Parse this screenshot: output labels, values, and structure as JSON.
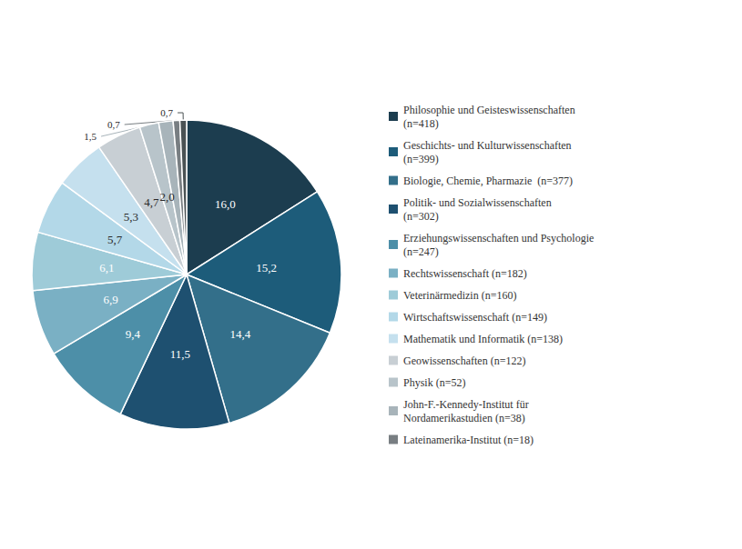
{
  "chart_data": {
    "type": "pie",
    "categories": [
      "Philosophie und Geisteswissenschaften\n(n=418)",
      "Geschichts- und Kulturwissenschaften\n(n=399)",
      "Biologie, Chemie, Pharmazie  (n=377)",
      "Politik- und Sozialwissenschaften\n(n=302)",
      "Erziehungswissenschaften und Psychologie\n(n=247)",
      "Rechtswissenschaft (n=182)",
      "Veterinärmedizin (n=160)",
      "Wirtschaftswissenschaft (n=149)",
      "Mathematik und Informatik (n=138)",
      "Geowissenschaften (n=122)",
      "Physik (n=52)",
      "John-F.-Kennedy-Institut für\nNordamerikastudien (n=38)",
      "Lateinamerika-Institut (n=18)",
      null
    ],
    "values": [
      16.0,
      15.2,
      14.4,
      11.5,
      9.4,
      6.9,
      6.1,
      5.7,
      5.3,
      4.7,
      2.0,
      1.5,
      0.7,
      0.7
    ],
    "value_labels": [
      "16,0",
      "15,2",
      "14,4",
      "11,5",
      "9,4",
      "6,9",
      "6,1",
      "5,7",
      "5,3",
      "4,7",
      "2,0",
      "1,5",
      "0,7",
      "0,7"
    ],
    "colors": [
      "#1c3d4f",
      "#1d5c7a",
      "#336f8a",
      "#1e5070",
      "#4d8fa8",
      "#7ab0c4",
      "#9ecbd8",
      "#b3d8e8",
      "#c5e0ee",
      "#c8cfd4",
      "#b8c4ca",
      "#a8b4ba",
      "#787e82",
      "#4a5254"
    ],
    "legend": "right"
  }
}
